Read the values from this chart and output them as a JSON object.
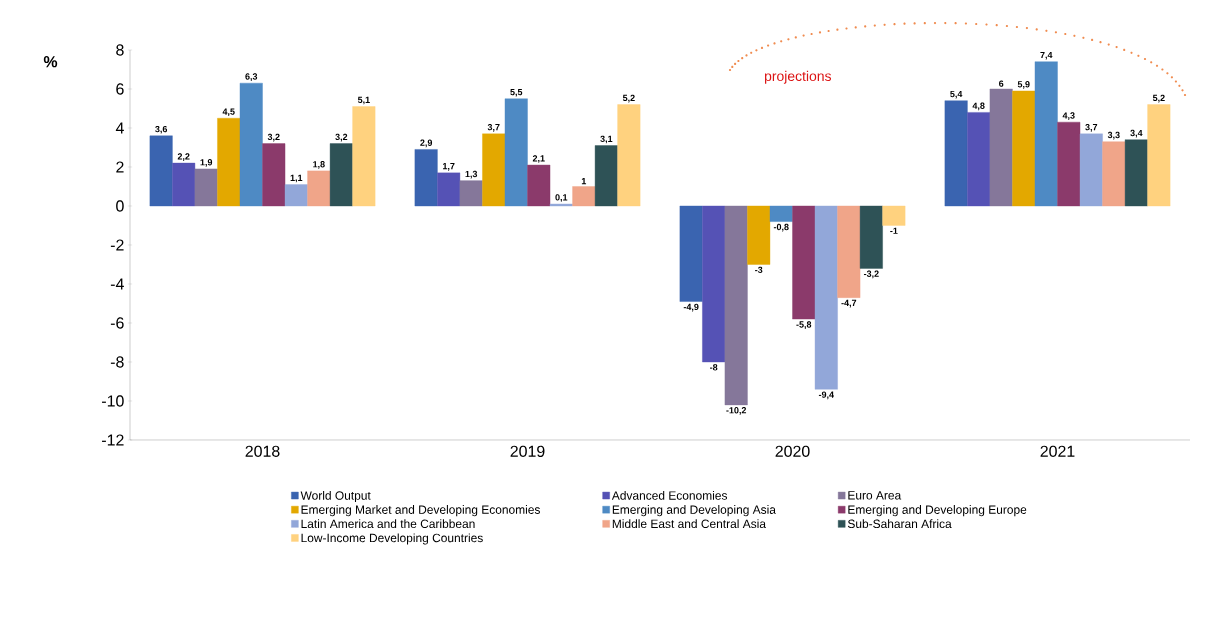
{
  "chart_data": {
    "type": "bar",
    "ylabel": "%",
    "categories": [
      "2018",
      "2019",
      "2020",
      "2021"
    ],
    "ylim": [
      -12,
      8
    ],
    "yticks": [
      -12,
      -10,
      -8,
      -6,
      -4,
      -2,
      0,
      2,
      4,
      6,
      8
    ],
    "legend": "bottom",
    "grid": false,
    "annotations": [
      "projections"
    ],
    "series": [
      {
        "name": "World Output",
        "color": "#3a64b0",
        "values": [
          3.6,
          2.9,
          -4.9,
          5.4
        ],
        "value_labels": [
          "3,6",
          "2,9",
          "-4,9",
          "5,4"
        ]
      },
      {
        "name": "Advanced Economies",
        "color": "#5552b5",
        "values": [
          2.2,
          1.7,
          -8,
          4.8
        ],
        "value_labels": [
          "2,2",
          "1,7",
          "-8",
          "4,8"
        ]
      },
      {
        "name": "Euro Area",
        "color": "#85779a",
        "values": [
          1.9,
          1.3,
          -10.2,
          6
        ],
        "value_labels": [
          "1,9",
          "1,3",
          "-10,2",
          "6"
        ]
      },
      {
        "name": "Emerging Market and Developing Economies",
        "color": "#e3a800",
        "values": [
          4.5,
          3.7,
          -3,
          5.9
        ],
        "value_labels": [
          "4,5",
          "3,7",
          "-3",
          "5,9"
        ]
      },
      {
        "name": "Emerging and Developing Asia",
        "color": "#4e8ac4",
        "values": [
          6.3,
          5.5,
          -0.8,
          7.4
        ],
        "value_labels": [
          "6,3",
          "5,5",
          "-0,8",
          "7,4"
        ]
      },
      {
        "name": "Emerging and Developing Europe",
        "color": "#8b3a6b",
        "values": [
          3.2,
          2.1,
          -5.8,
          4.3
        ],
        "value_labels": [
          "3,2",
          "2,1",
          "-5,8",
          "4,3"
        ]
      },
      {
        "name": "Latin America and the Caribbean",
        "color": "#92a7d9",
        "values": [
          1.1,
          0.1,
          -9.4,
          3.7
        ],
        "value_labels": [
          "1,1",
          "0,1",
          "-9,4",
          "3,7"
        ]
      },
      {
        "name": "Middle East and Central Asia",
        "color": "#f0a589",
        "values": [
          1.8,
          1,
          -4.7,
          3.3
        ],
        "value_labels": [
          "1,8",
          "1",
          "-4,7",
          "3,3"
        ]
      },
      {
        "name": "Sub-Saharan Africa",
        "color": "#2e5256",
        "values": [
          3.2,
          3.1,
          -3.2,
          3.4
        ],
        "value_labels": [
          "3,2",
          "3,1",
          "-3,2",
          "3,4"
        ]
      },
      {
        "name": "Low-Income Developing Countries",
        "color": "#ffd27f",
        "values": [
          5.1,
          5.2,
          -1,
          5.2
        ],
        "value_labels": [
          "5,1",
          "5,2",
          "-1",
          "5,2"
        ]
      }
    ]
  }
}
